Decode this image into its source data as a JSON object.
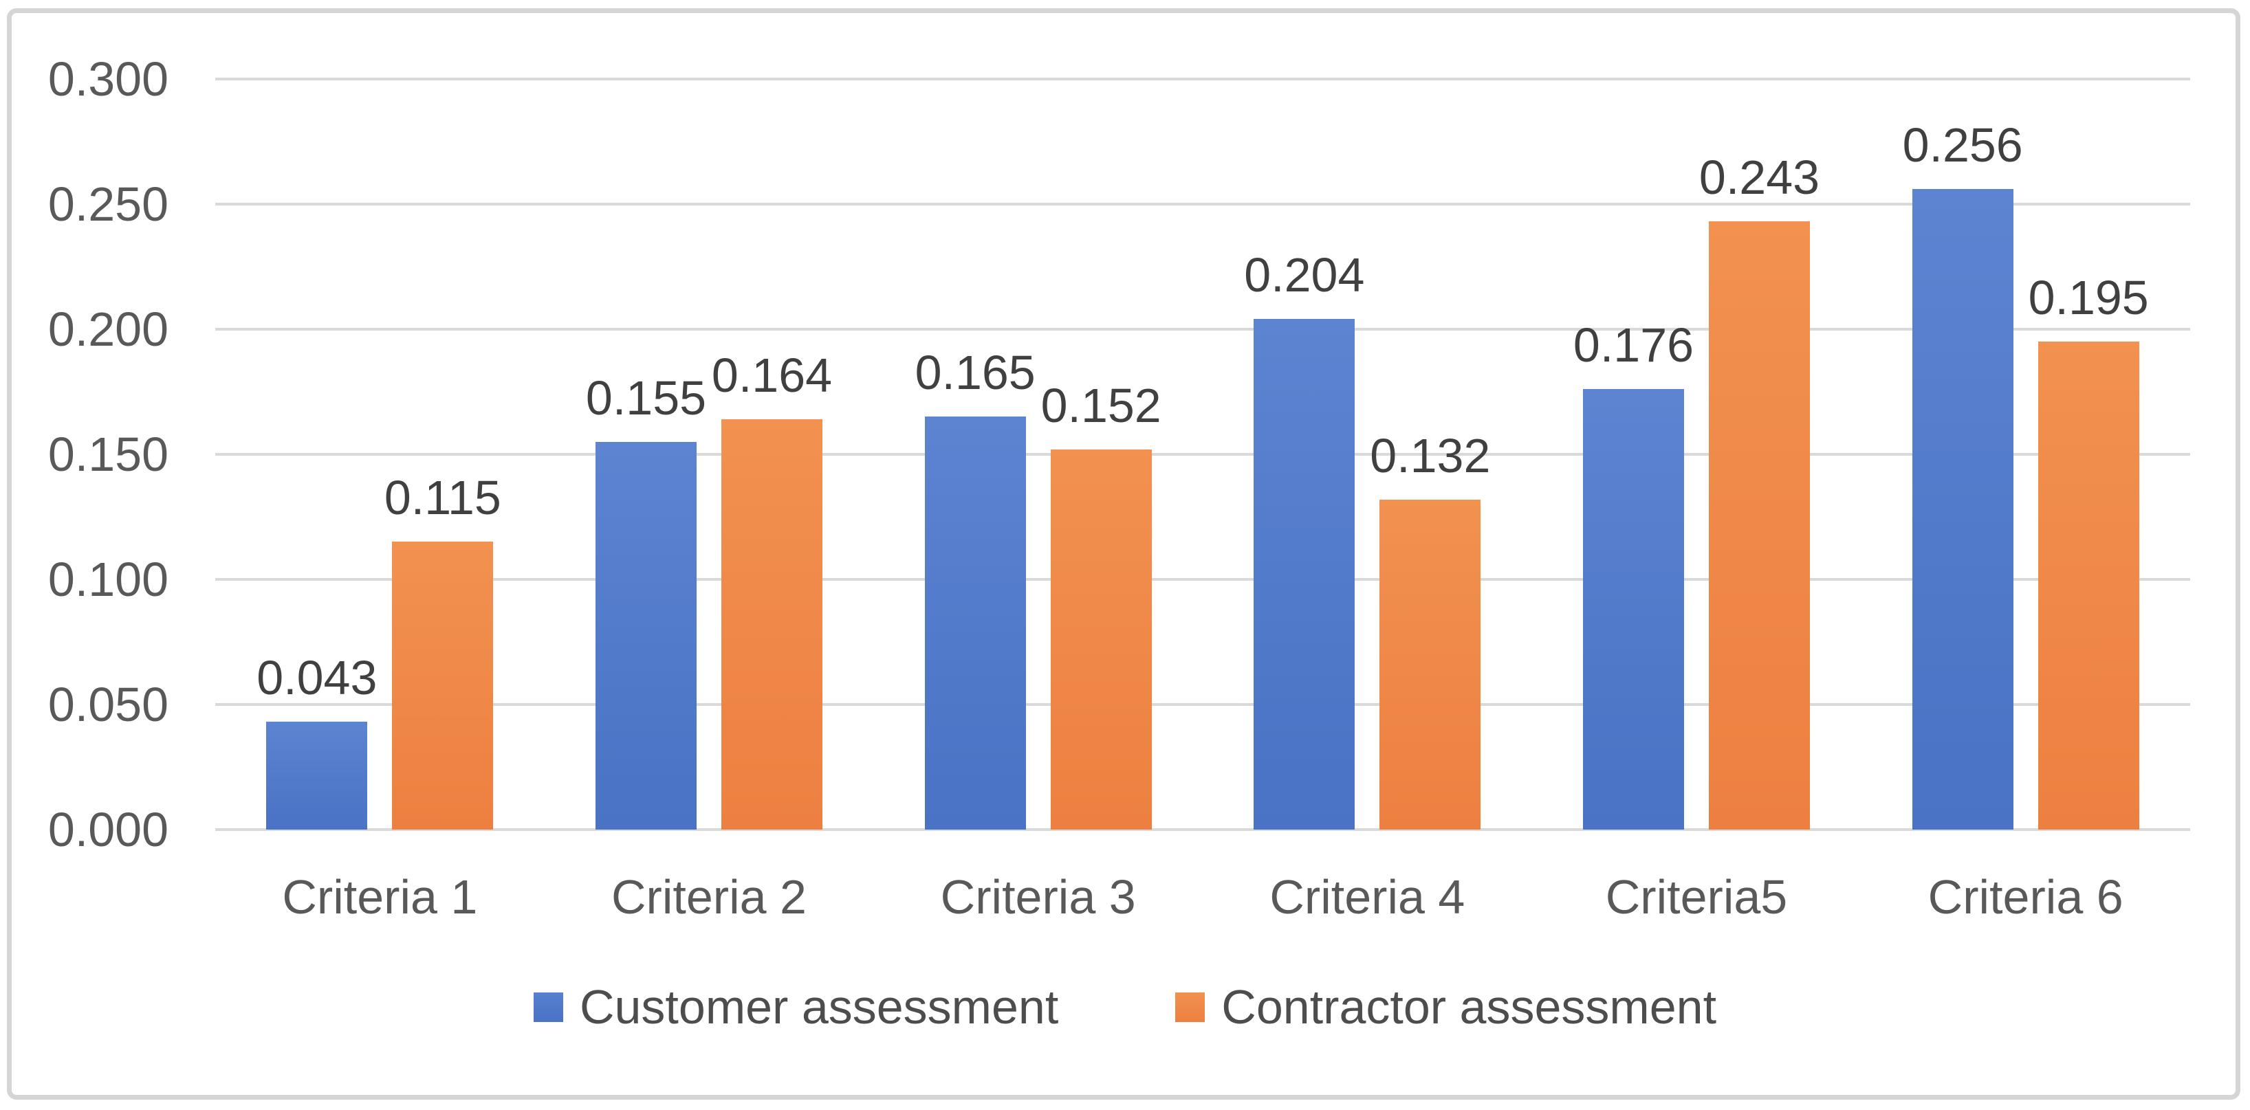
{
  "chart_data": {
    "type": "bar",
    "title": "",
    "xlabel": "",
    "ylabel": "",
    "categories": [
      "Criteria 1",
      "Criteria 2",
      "Criteria 3",
      "Criteria 4",
      "Criteria5",
      "Criteria 6"
    ],
    "series": [
      {
        "name": "Customer assessment",
        "color": "#4a72c5",
        "values": [
          0.043,
          0.155,
          0.165,
          0.204,
          0.176,
          0.256
        ]
      },
      {
        "name": "Contractor assessment",
        "color": "#ed8040",
        "values": [
          0.115,
          0.164,
          0.152,
          0.132,
          0.243,
          0.195
        ]
      }
    ],
    "y_axis": {
      "min": 0.0,
      "max": 0.3,
      "step": 0.05,
      "tick_labels": [
        "0.300",
        "0.250",
        "0.200",
        "0.150",
        "0.100",
        "0.050",
        "0.000"
      ]
    },
    "data_labels": {
      "visible": true,
      "decimals": 3
    },
    "grid": true,
    "legend_position": "bottom",
    "colors": {
      "gridline": "#d9d9d9",
      "border": "#d5d5d5",
      "axis_text": "#595959",
      "data_label_text": "#404040",
      "legend_text": "#4d4d4d",
      "background": "#ffffff"
    }
  }
}
